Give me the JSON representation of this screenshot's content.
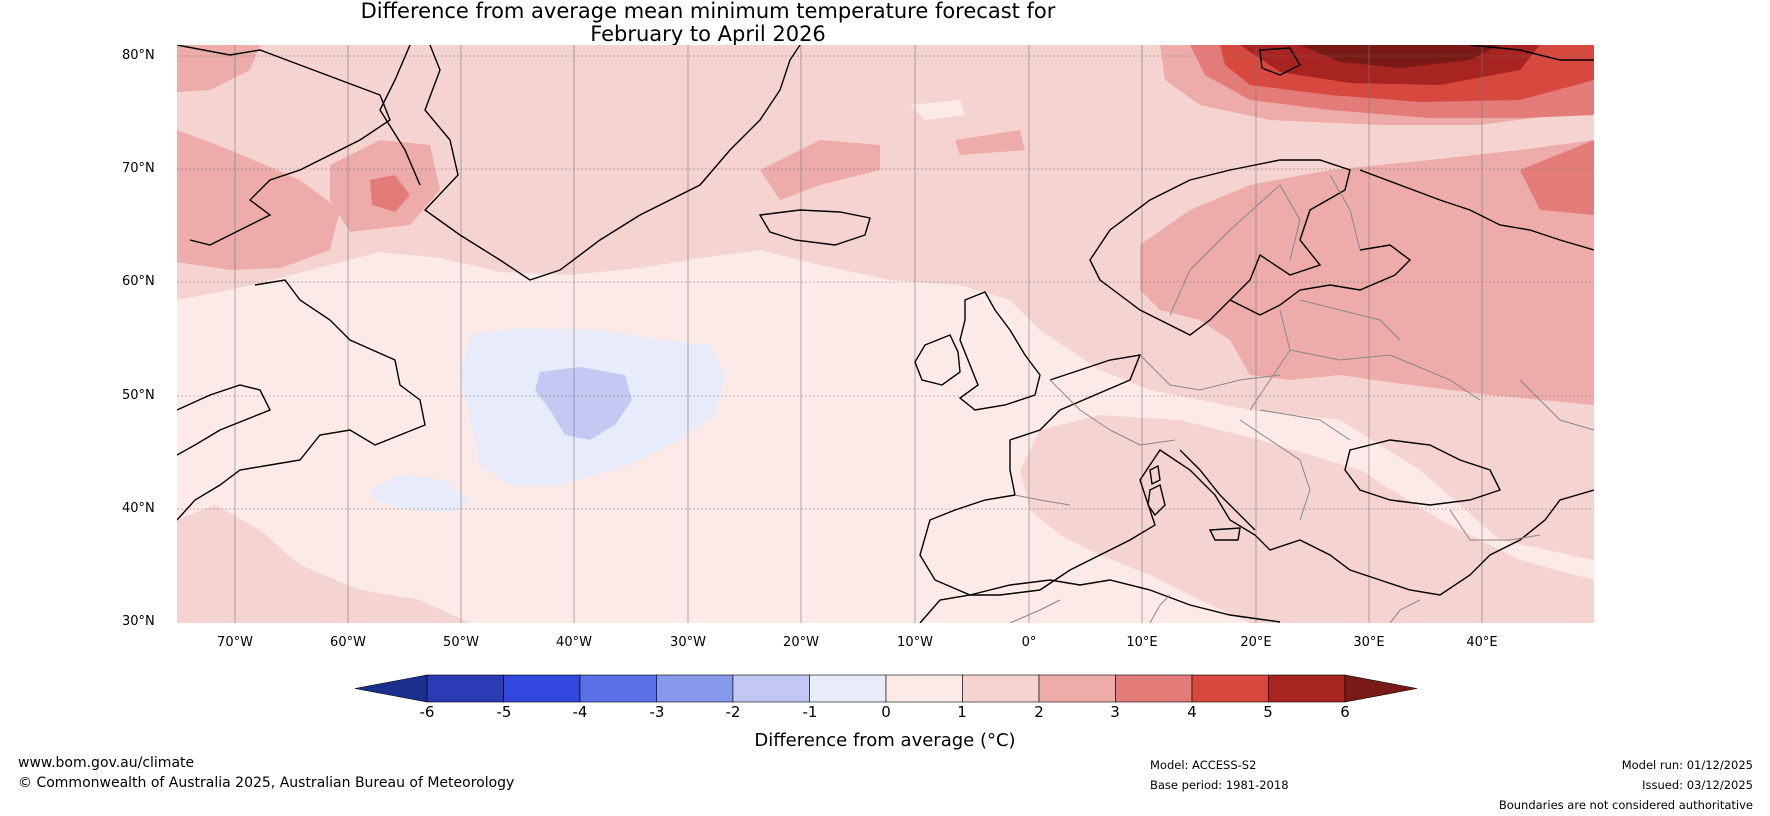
{
  "title": {
    "line1": "Difference from average mean minimum temperature forecast for",
    "line2": "February to April 2026"
  },
  "map": {
    "region": "North Atlantic and Europe",
    "lat_labels": [
      "80°N",
      "70°N",
      "60°N",
      "50°N",
      "40°N",
      "30°N"
    ],
    "lon_labels": [
      "70°W",
      "60°W",
      "50°W",
      "40°W",
      "30°W",
      "20°W",
      "10°W",
      "0°",
      "10°E",
      "20°E",
      "30°E",
      "40°E"
    ],
    "colors": {
      "ocean_base": "#fbeae8",
      "band_1_2": "#f5d3d1",
      "band_2_3": "#edaca9",
      "band_3_4": "#e37c78",
      "band_4_5": "#d7493f",
      "band_5_6": "#a82421",
      "band_gt6": "#7a1a16",
      "band_m1_0": "#e8ebfa",
      "band_m2_m1": "#c3c9f3"
    }
  },
  "colorbar": {
    "ticks": [
      "-6",
      "-5",
      "-4",
      "-3",
      "-2",
      "-1",
      "0",
      "1",
      "2",
      "3",
      "4",
      "5",
      "6"
    ],
    "colors": [
      "#1a2f8e",
      "#2a3bb5",
      "#3147de",
      "#5a70e6",
      "#8797eb",
      "#c2c8f3",
      "#e8ebfa",
      "#fbeae8",
      "#f5d3d1",
      "#edaca9",
      "#e37c78",
      "#d7493f",
      "#a82421",
      "#7a1a16"
    ],
    "label": "Difference from average (°C)"
  },
  "footer": {
    "website": "www.bom.gov.au/climate",
    "copyright": "© Commonwealth of Australia 2025, Australian Bureau of Meteorology",
    "model": "Model: ACCESS-S2",
    "base_period": "Base period: 1981-2018",
    "model_run": "Model run: 01/12/2025",
    "issued": "Issued: 03/12/2025",
    "disclaimer": "Boundaries are not considered authoritative"
  }
}
